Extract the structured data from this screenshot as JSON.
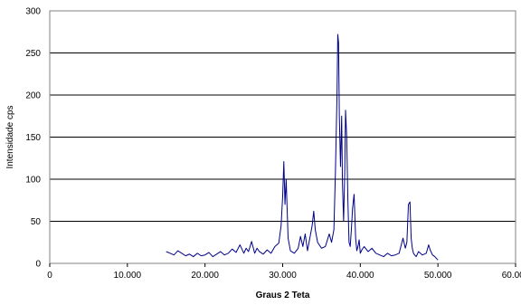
{
  "chart_data": {
    "type": "line",
    "title": "",
    "xlabel": "Graus 2 Teta",
    "ylabel": "Intensidade cps",
    "xlim": [
      0,
      60
    ],
    "ylim": [
      0,
      300
    ],
    "x_ticks": [
      0,
      10,
      20,
      30,
      40,
      50,
      60
    ],
    "x_tick_labels": [
      "0",
      "10.000",
      "20.000",
      "30.000",
      "40.000",
      "50.000",
      "60.000"
    ],
    "y_ticks": [
      0,
      50,
      100,
      150,
      200,
      250,
      300
    ],
    "y_tick_labels": [
      "0",
      "50",
      "100",
      "150",
      "200",
      "250",
      "300"
    ],
    "grid": "horizontal",
    "legend": "none",
    "line_color": "#00008b",
    "series": [
      {
        "x": [
          15.0,
          15.5,
          16.0,
          16.5,
          17.0,
          17.5,
          18.0,
          18.5,
          19.0,
          19.5,
          20.0,
          20.5,
          21.0,
          21.5,
          22.0,
          22.5,
          23.0,
          23.5,
          24.0,
          24.5,
          25.0,
          25.3,
          25.6,
          26.0,
          26.4,
          26.7,
          27.0,
          27.5,
          28.0,
          28.5,
          29.0,
          29.5,
          29.8,
          30.0,
          30.15,
          30.3,
          30.45,
          30.7,
          31.0,
          31.5,
          32.0,
          32.3,
          32.6,
          32.9,
          33.2,
          33.5,
          33.8,
          34.0,
          34.2,
          34.5,
          35.0,
          35.5,
          36.0,
          36.3,
          36.6,
          36.8,
          37.0,
          37.1,
          37.2,
          37.3,
          37.45,
          37.6,
          37.7,
          37.85,
          38.0,
          38.1,
          38.25,
          38.4,
          38.55,
          38.7,
          38.85,
          39.0,
          39.2,
          39.4,
          39.55,
          39.7,
          39.85,
          40.0,
          40.2,
          40.5,
          41.0,
          41.5,
          42.0,
          42.5,
          43.0,
          43.5,
          44.0,
          44.5,
          45.0,
          45.5,
          45.8,
          46.0,
          46.2,
          46.4,
          46.55,
          46.7,
          46.85,
          47.0,
          47.2,
          47.5,
          48.0,
          48.5,
          48.8,
          49.0,
          49.3,
          49.6,
          50.0
        ],
        "y": [
          14,
          12,
          10,
          15,
          12,
          9,
          11,
          8,
          12,
          9,
          10,
          13,
          8,
          11,
          14,
          10,
          12,
          17,
          13,
          22,
          12,
          18,
          14,
          26,
          12,
          18,
          14,
          11,
          16,
          12,
          20,
          24,
          45,
          80,
          121,
          70,
          100,
          30,
          15,
          12,
          18,
          32,
          20,
          35,
          15,
          30,
          45,
          62,
          40,
          25,
          18,
          20,
          35,
          25,
          40,
          110,
          200,
          272,
          262,
          175,
          115,
          175,
          95,
          50,
          110,
          182,
          150,
          75,
          25,
          20,
          40,
          65,
          82,
          30,
          15,
          20,
          28,
          12,
          16,
          20,
          14,
          18,
          12,
          10,
          8,
          12,
          9,
          10,
          12,
          30,
          18,
          25,
          70,
          73,
          30,
          18,
          12,
          10,
          8,
          14,
          10,
          12,
          22,
          16,
          10,
          8,
          4
        ]
      }
    ]
  }
}
